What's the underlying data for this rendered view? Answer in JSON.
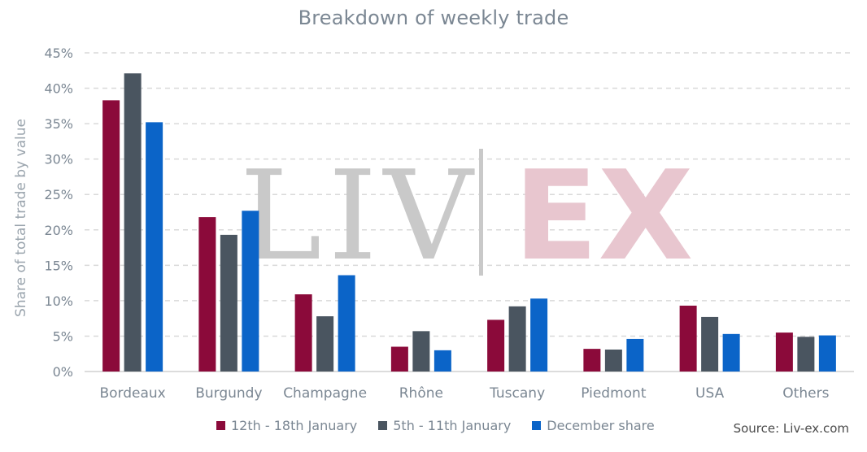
{
  "chart_data": {
    "type": "bar",
    "title": "Breakdown of weekly trade",
    "ylabel": "Share of total trade by value",
    "xlabel": "",
    "categories": [
      "Bordeaux",
      "Burgundy",
      "Champagne",
      "Rhône",
      "Tuscany",
      "Piedmont",
      "USA",
      "Others"
    ],
    "series": [
      {
        "name": "12th - 18th January",
        "color": "#8b0a3a",
        "values": [
          38.3,
          21.8,
          10.9,
          3.5,
          7.3,
          3.2,
          9.3,
          5.5
        ]
      },
      {
        "name": "5th - 11th January",
        "color": "#4a5560",
        "values": [
          42.1,
          19.3,
          7.8,
          5.7,
          9.2,
          3.1,
          7.7,
          4.9
        ]
      },
      {
        "name": "December share",
        "color": "#0b64c8",
        "values": [
          35.2,
          22.7,
          13.6,
          3.0,
          10.3,
          4.6,
          5.3,
          5.1
        ]
      }
    ],
    "ylim": [
      0,
      45
    ],
    "yticks": [
      0,
      5,
      10,
      15,
      20,
      25,
      30,
      35,
      40,
      45
    ],
    "y_tick_suffix": "%",
    "grid": "horizontal dashed",
    "legend_position": "bottom",
    "source": "Source: Liv-ex.com",
    "watermark_left": "LIV",
    "watermark_right": "EX"
  }
}
